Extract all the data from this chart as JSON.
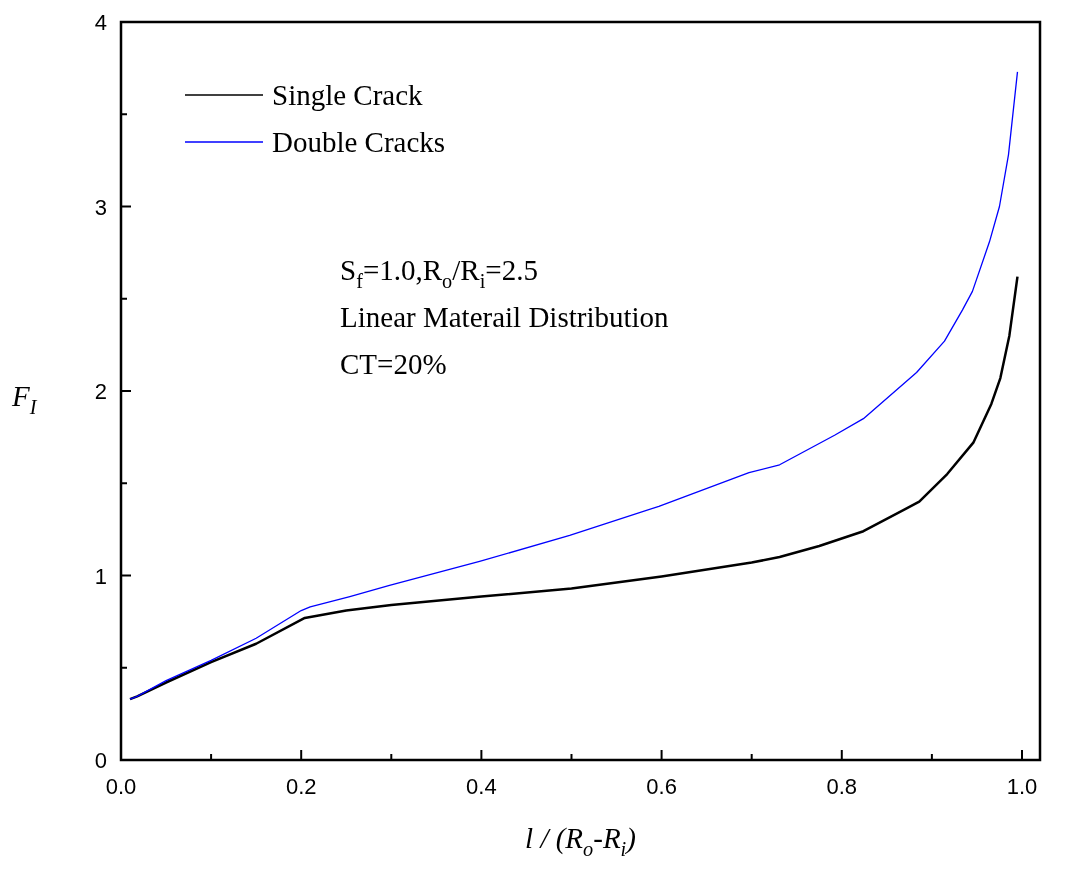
{
  "chart_data": {
    "type": "line",
    "xlabel": "l / (R$_{o}$-R$_{i}$)",
    "ylabel": "F$_{I}$",
    "xlim": [
      0,
      1.02
    ],
    "ylim": [
      0,
      4
    ],
    "xticks": [
      {
        "value": 0,
        "label": "0.0"
      },
      {
        "value": 0.1,
        "label": null
      },
      0.2,
      {
        "value": 0.3,
        "label": null
      },
      0.4,
      {
        "value": 0.5,
        "label": null
      },
      0.6,
      {
        "value": 0.7,
        "label": null
      },
      0.8,
      {
        "value": 0.9,
        "label": null
      },
      {
        "value": 1,
        "label": "1.0"
      }
    ],
    "yticks": [
      0,
      {
        "value": 0.5,
        "label": null
      },
      1,
      {
        "value": 1.5,
        "label": null
      },
      2,
      {
        "value": 2.5,
        "label": null
      },
      3,
      {
        "value": 3.5,
        "label": null
      },
      4
    ],
    "legend": "top left",
    "grid": false,
    "marker": "none",
    "line_style": "solid",
    "annotations": [
      "S$_{f}$=1.0,R$_{o}$/R$_{i}$=2.5",
      "Linear Materail Distribution",
      "CT=20%"
    ],
    "series": [
      {
        "name": "Single Crack",
        "color": "#000000",
        "x": [
          0.01,
          0.018,
          0.05,
          0.1,
          0.15,
          0.204,
          0.25,
          0.3,
          0.4,
          0.5,
          0.6,
          0.7,
          0.731,
          0.775,
          0.824,
          0.886,
          0.917,
          0.946,
          0.966,
          0.976,
          0.986,
          0.995
        ],
        "values": [
          0.33,
          0.345,
          0.42,
          0.53,
          0.63,
          0.77,
          0.81,
          0.84,
          0.886,
          0.93,
          0.995,
          1.07,
          1.1,
          1.16,
          1.24,
          1.4,
          1.55,
          1.72,
          1.93,
          2.07,
          2.3,
          2.62
        ]
      },
      {
        "name": "Double Cracks",
        "color": "#0000ff",
        "x": [
          0.01,
          0.018,
          0.05,
          0.1,
          0.15,
          0.2,
          0.21,
          0.254,
          0.298,
          0.398,
          0.498,
          0.597,
          0.697,
          0.731,
          0.792,
          0.824,
          0.883,
          0.914,
          0.934,
          0.945,
          0.964,
          0.975,
          0.985,
          0.995
        ],
        "values": [
          0.33,
          0.345,
          0.43,
          0.54,
          0.66,
          0.81,
          0.83,
          0.886,
          0.946,
          1.076,
          1.217,
          1.375,
          1.557,
          1.6,
          1.76,
          1.85,
          2.1,
          2.27,
          2.44,
          2.54,
          2.81,
          3.0,
          3.28,
          3.73
        ]
      }
    ]
  }
}
